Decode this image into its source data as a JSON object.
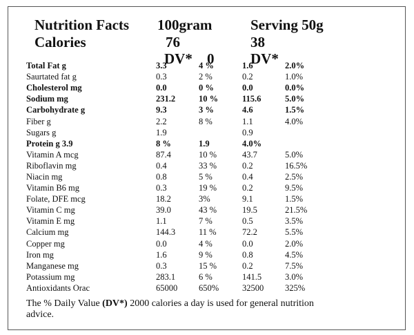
{
  "header": {
    "title": "Nutrition Facts",
    "per100_label": "100gram",
    "serving_label": "Serving 50g",
    "calories_label": "Calories",
    "calories_100g": "76",
    "calories_serving": "38",
    "dv_label_1": "DV*",
    "dv_zero": "0",
    "dv_label_2": "DV*"
  },
  "rows": [
    {
      "name": "Total Fat  g",
      "v1": "3.3",
      "v2": "4 %",
      "v3": "1.6",
      "v4": "2.0%",
      "bold": true
    },
    {
      "name": "Saurtated fat g",
      "v1": "0.3",
      "v2": "2 %",
      "v3": "0.2",
      "v4": "1.0%",
      "bold": false
    },
    {
      "name": "Cholesterol  mg",
      "v1": "0.0",
      "v2": "0 %",
      "v3": "0.0",
      "v4": "0.0%",
      "bold": true
    },
    {
      "name": "Sodium  mg",
      "v1": "231.2",
      "v2": "10 %",
      "v3": "115.6",
      "v4": "5.0%",
      "bold": true
    },
    {
      "name": "Carbohydrate g",
      "v1": "9.3",
      "v2": "3 %",
      "v3": "4.6",
      "v4": "1.5%",
      "bold": true
    },
    {
      "name": "Fiber g",
      "v1": "2.2",
      "v2": "8 %",
      "v3": "1.1",
      "v4": "4.0%",
      "bold": false
    },
    {
      "name": "Sugars g",
      "v1": "1.9",
      "v2": "",
      "v3": "0.9",
      "v4": "",
      "bold": false
    },
    {
      "name": "Protein g  3.9",
      "v1": "8 %",
      "v2": "1.9",
      "v3": "4.0%",
      "v4": "",
      "bold": true
    },
    {
      "name": "Vitamin A  mcg",
      "v1": "87.4",
      "v2": "10 %",
      "v3": "43.7",
      "v4": "5.0%",
      "bold": false
    },
    {
      "name": "Riboflavin mg",
      "v1": "0.4",
      "v2": "33 %",
      "v3": "0.2",
      "v4": "16.5%",
      "bold": false
    },
    {
      "name": "Niacin mg",
      "v1": "0.8",
      "v2": "5 %",
      "v3": "0.4",
      "v4": "2.5%",
      "bold": false
    },
    {
      "name": "Vitamin B6 mg",
      "v1": "0.3",
      "v2": "19 %",
      "v3": "0.2",
      "v4": "9.5%",
      "bold": false
    },
    {
      "name": "Folate, DFE mcg",
      "v1": "18.2",
      "v2": "3%",
      "v3": "9.1",
      "v4": "1.5%",
      "bold": false
    },
    {
      "name": "Vitamin C mg",
      "v1": "39.0",
      "v2": "43 %",
      "v3": "19.5",
      "v4": "21.5%",
      "bold": false
    },
    {
      "name": "Vitamin E  mg",
      "v1": "1.1",
      "v2": "7 %",
      "v3": "0.5",
      "v4": "3.5%",
      "bold": false
    },
    {
      "name": "Calcium  mg",
      "v1": "144.3",
      "v2": "11 %",
      "v3": "72.2",
      "v4": "5.5%",
      "bold": false
    },
    {
      "name": "Copper  mg",
      "v1": "0.0",
      "v2": "4 %",
      "v3": "0.0",
      "v4": "2.0%",
      "bold": false
    },
    {
      "name": "Iron  mg",
      "v1": "1.6",
      "v2": "9 %",
      "v3": "0.8",
      "v4": "4.5%",
      "bold": false
    },
    {
      "name": "Manganese mg",
      "v1": "0.3",
      "v2": "15 %",
      "v3": "0.2",
      "v4": "7.5%",
      "bold": false
    },
    {
      "name": "Potassium  mg",
      "v1": "283.1",
      "v2": "6 %",
      "v3": "141.5",
      "v4": "3.0%",
      "bold": false
    },
    {
      "name": "Antioxidants Orac",
      "v1": "65000",
      "v2": "650%",
      "v3": "32500",
      "v4": "325%",
      "bold": false
    }
  ],
  "footer": {
    "prefix": "The % Daily Value ",
    "dv_bold": "(DV*)",
    "suffix": " 2000 calories a day is used for general nutrition advice."
  }
}
